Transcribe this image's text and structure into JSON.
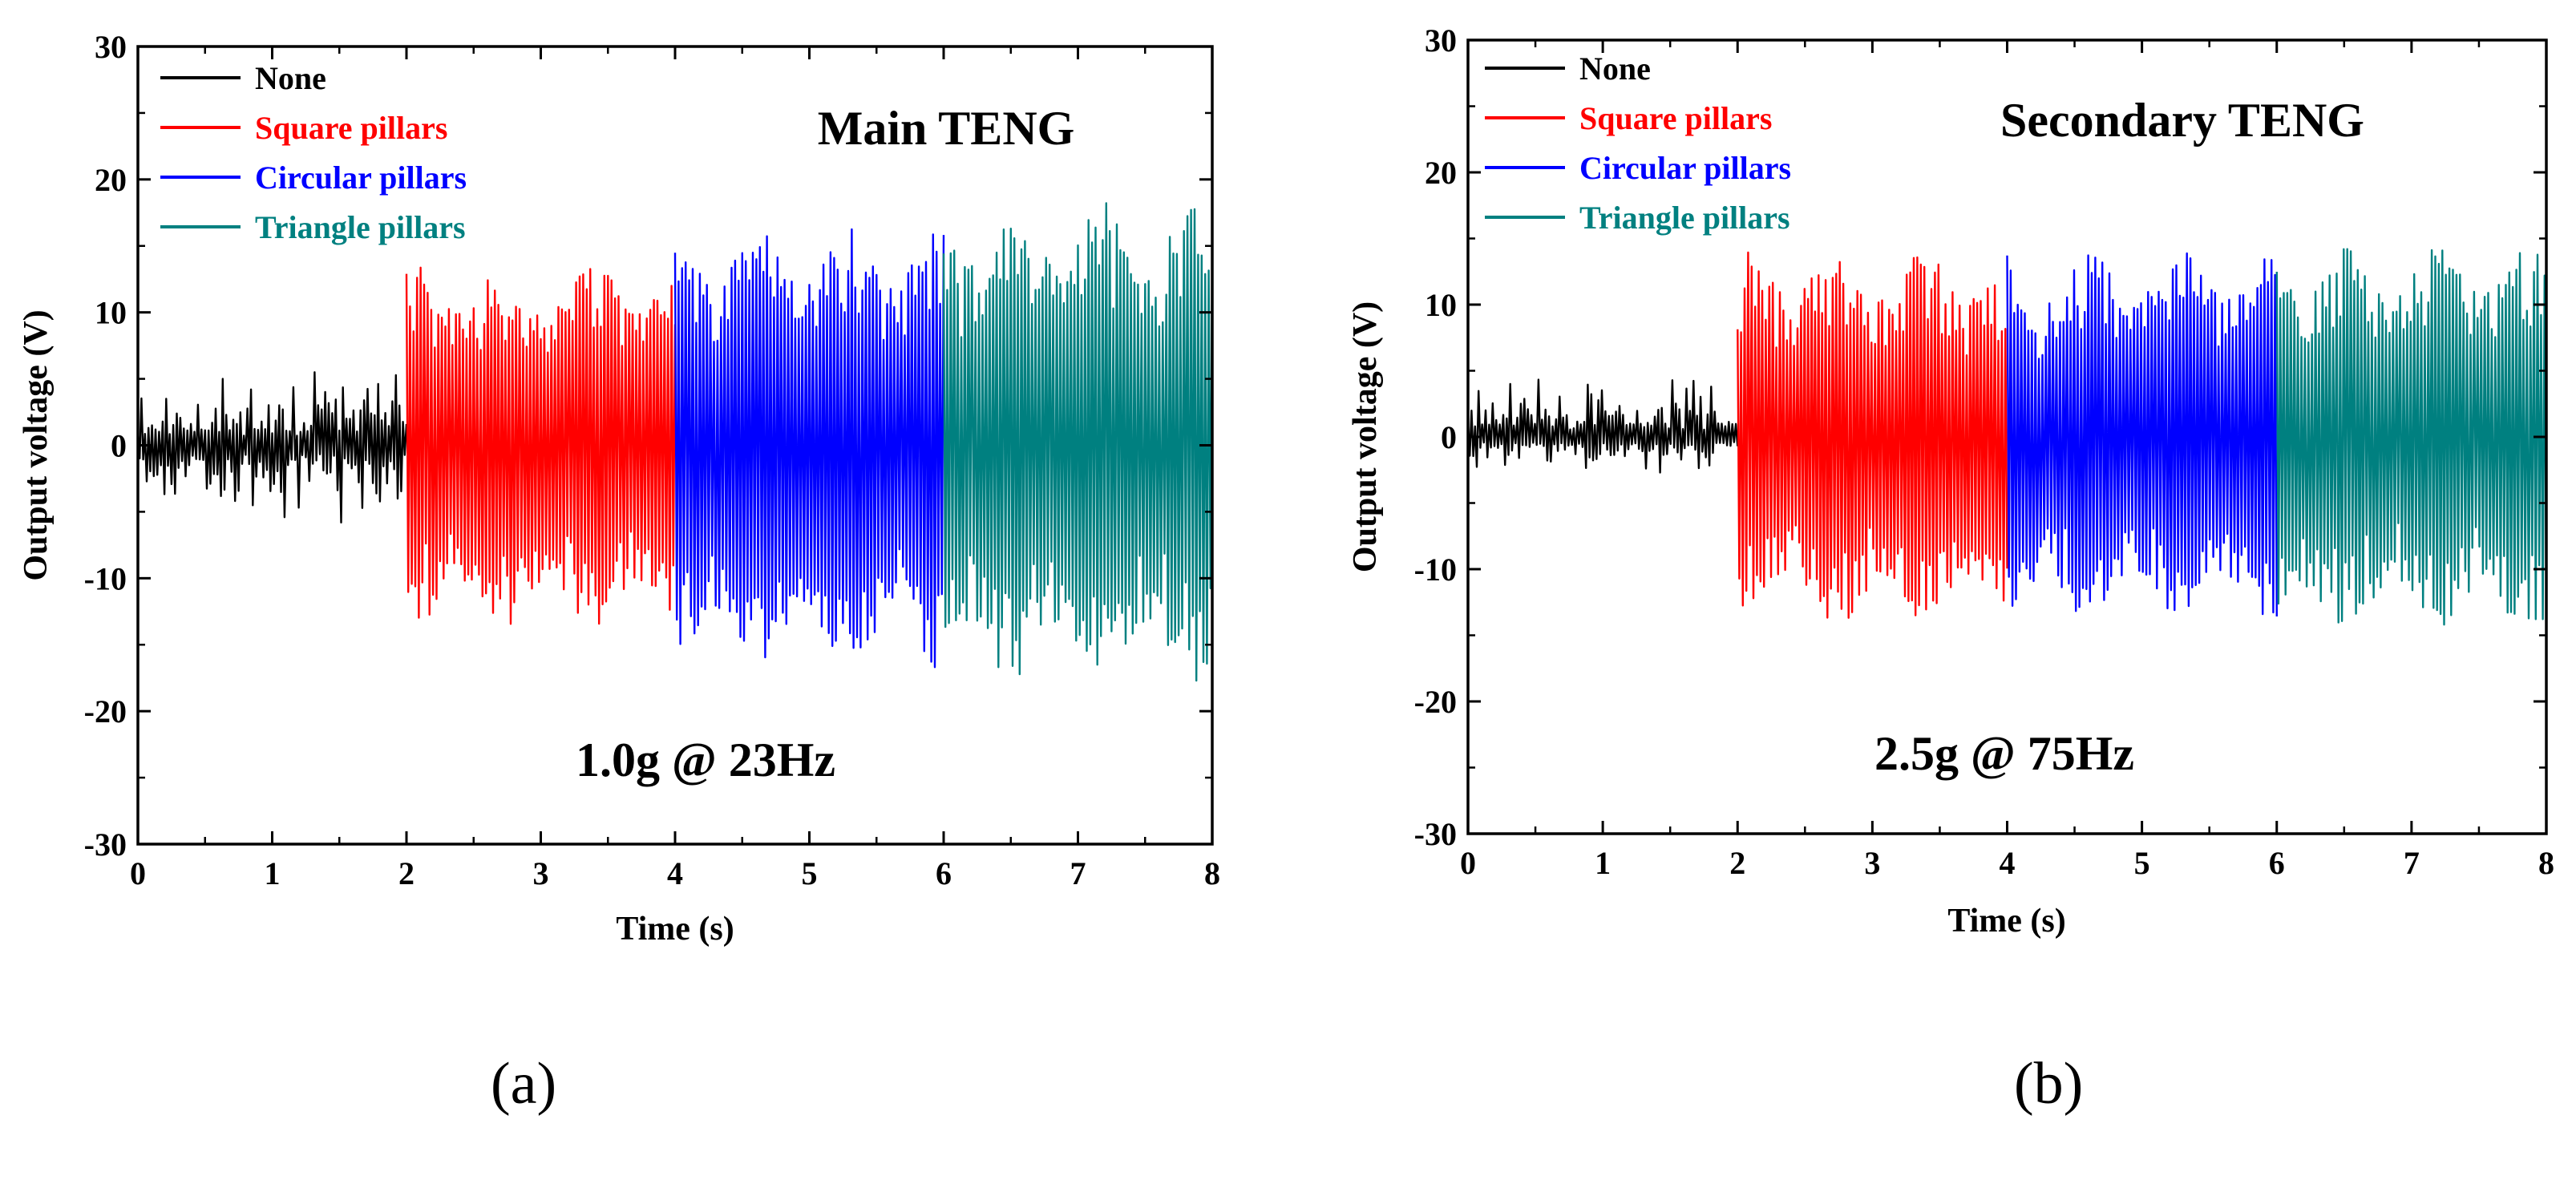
{
  "chart_data": [
    {
      "type": "line",
      "title": "Main TENG",
      "annotation": "1.0g @ 23Hz",
      "xlabel": "Time (s)",
      "ylabel": "Output voltage (V)",
      "xlim": [
        0,
        8
      ],
      "ylim": [
        -30,
        30
      ],
      "xticks": [
        "0",
        "1",
        "2",
        "3",
        "4",
        "5",
        "6",
        "7",
        "8"
      ],
      "yticks": [
        "-30",
        "-20",
        "-10",
        "0",
        "10",
        "20",
        "30"
      ],
      "legend_position": "top-left",
      "series": [
        {
          "name": "None",
          "color": "#000000",
          "x_range": [
            0,
            2
          ],
          "peak_max": 6.5,
          "peak_min": -6.0
        },
        {
          "name": "Square pillars",
          "color": "#ff0000",
          "x_range": [
            2,
            4
          ],
          "peak_max": 14.5,
          "peak_min": -14.5
        },
        {
          "name": "Circular pillars",
          "color": "#0000ff",
          "x_range": [
            4,
            6
          ],
          "peak_max": 17.5,
          "peak_min": -18.0
        },
        {
          "name": "Triangle pillars",
          "color": "#008080",
          "x_range": [
            6,
            8
          ],
          "peak_max": 19.5,
          "peak_min": -19.0
        }
      ]
    },
    {
      "type": "line",
      "title": "Secondary TENG",
      "annotation": "2.5g @ 75Hz",
      "xlabel": "Time (s)",
      "ylabel": "Output voltage (V)",
      "xlim": [
        0,
        8
      ],
      "ylim": [
        -30,
        30
      ],
      "xticks": [
        "0",
        "1",
        "2",
        "3",
        "4",
        "5",
        "6",
        "7",
        "8"
      ],
      "yticks": [
        "-30",
        "-20",
        "-10",
        "0",
        "10",
        "20",
        "30"
      ],
      "legend_position": "top-left",
      "series": [
        {
          "name": "None",
          "color": "#000000",
          "x_range": [
            0,
            2
          ],
          "peak_max": 5.0,
          "peak_min": -3.0
        },
        {
          "name": "Square pillars",
          "color": "#ff0000",
          "x_range": [
            2,
            4
          ],
          "peak_max": 15.0,
          "peak_min": -15.5
        },
        {
          "name": "Circular pillars",
          "color": "#0000ff",
          "x_range": [
            4,
            6
          ],
          "peak_max": 15.0,
          "peak_min": -15.0
        },
        {
          "name": "Triangle pillars",
          "color": "#008080",
          "x_range": [
            6,
            8
          ],
          "peak_max": 15.5,
          "peak_min": -16.0
        }
      ]
    }
  ],
  "panels": {
    "a_label": "(a)",
    "b_label": "(b)"
  }
}
